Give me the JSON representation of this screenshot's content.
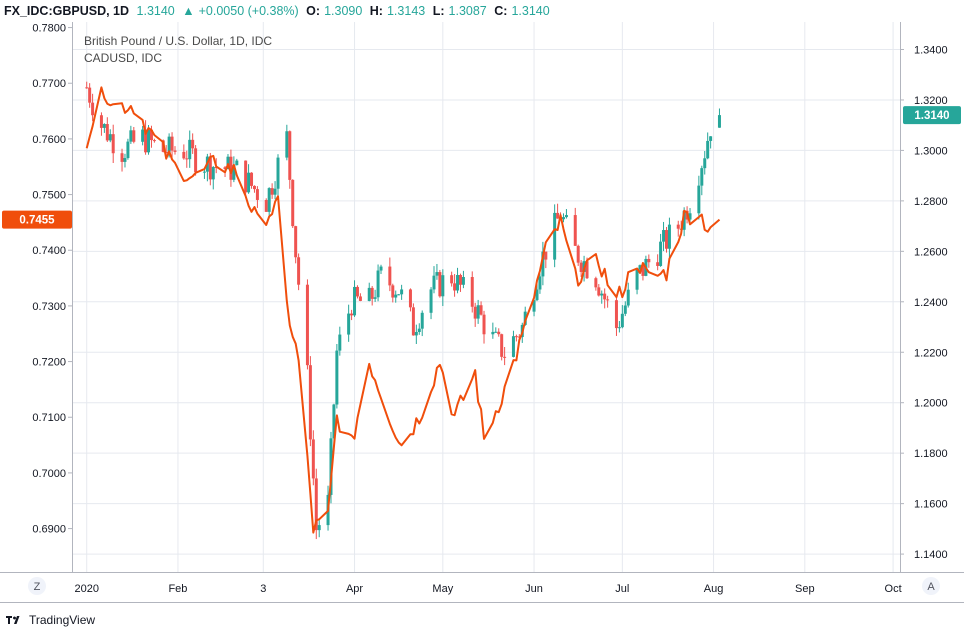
{
  "header": {
    "symbol": "FX_IDC:GBPUSD, 1D",
    "last": "1.3140",
    "change": "+0.0050 (+0.38%)",
    "o_label": "O:",
    "o": "1.3090",
    "h_label": "H:",
    "h": "1.3143",
    "l_label": "L:",
    "l": "1.3087",
    "c_label": "C:",
    "c": "1.3140"
  },
  "legend": {
    "main": "British Pound / U.S. Dollar, 1D, IDC",
    "overlay": "CADUSD, IDC"
  },
  "footer": {
    "brand": "TradingView",
    "scale_left_btn": "Z",
    "scale_right_btn": "A"
  },
  "colors": {
    "up": "#26a69a",
    "down": "#ef5350",
    "overlay": "#f04e0c",
    "grid": "#e6e9ef"
  },
  "chart_data": {
    "type": "candlestick",
    "right_axis": {
      "ticks": [
        "1.3400",
        "1.3200",
        "1.3000",
        "1.2800",
        "1.2600",
        "1.2400",
        "1.2200",
        "1.2000",
        "1.1800",
        "1.1600",
        "1.1400"
      ],
      "range": [
        1.1329,
        1.3509
      ],
      "last_label": "1.3140"
    },
    "left_axis": {
      "ticks": [
        "0.7800",
        "0.7700",
        "0.7600",
        "0.7500",
        "0.7400",
        "0.7300",
        "0.7200",
        "0.7100",
        "0.7000",
        "0.6900"
      ],
      "range": [
        0.6822,
        0.781
      ],
      "last_label": "0.7455"
    },
    "x_axis": {
      "labels": [
        "2020",
        "Feb",
        "3",
        "Apr",
        "May",
        "Jun",
        "Jul",
        "Aug",
        "Sep",
        "Oct"
      ]
    },
    "gbpusd_close_keypoints": [
      [
        "2020-01-01",
        1.325
      ],
      [
        "2020-01-06",
        1.31
      ],
      [
        "2020-01-13",
        1.3
      ],
      [
        "2020-01-20",
        1.305
      ],
      [
        "2020-01-27",
        1.3
      ],
      [
        "2020-02-03",
        1.3
      ],
      [
        "2020-02-10",
        1.295
      ],
      [
        "2020-02-17",
        1.293
      ],
      [
        "2020-02-21",
        1.292
      ],
      [
        "2020-03-02",
        1.28
      ],
      [
        "2020-03-09",
        1.305
      ],
      [
        "2020-03-12",
        1.26
      ],
      [
        "2020-03-16",
        1.21
      ],
      [
        "2020-03-19",
        1.15
      ],
      [
        "2020-03-23",
        1.16
      ],
      [
        "2020-03-26",
        1.22
      ],
      [
        "2020-03-31",
        1.24
      ],
      [
        "2020-04-06",
        1.24
      ],
      [
        "2020-04-10",
        1.25
      ],
      [
        "2020-04-16",
        1.245
      ],
      [
        "2020-04-21",
        1.23
      ],
      [
        "2020-04-27",
        1.245
      ],
      [
        "2020-05-04",
        1.25
      ],
      [
        "2020-05-11",
        1.24
      ],
      [
        "2020-05-18",
        1.225
      ],
      [
        "2020-05-22",
        1.22
      ],
      [
        "2020-05-28",
        1.23
      ],
      [
        "2020-06-03",
        1.255
      ],
      [
        "2020-06-10",
        1.275
      ],
      [
        "2020-06-15",
        1.26
      ],
      [
        "2020-06-22",
        1.25
      ],
      [
        "2020-06-29",
        1.23
      ],
      [
        "2020-07-06",
        1.25
      ],
      [
        "2020-07-13",
        1.26
      ],
      [
        "2020-07-20",
        1.27
      ],
      [
        "2020-07-24",
        1.28
      ],
      [
        "2020-07-29",
        1.3
      ],
      [
        "2020-07-31",
        1.31
      ],
      [
        "2020-08-03",
        1.314
      ]
    ],
    "cadusd_close_keypoints": [
      [
        "2020-01-01",
        0.76
      ],
      [
        "2020-01-07",
        0.769
      ],
      [
        "2020-01-10",
        0.766
      ],
      [
        "2020-01-17",
        0.766
      ],
      [
        "2020-01-24",
        0.76
      ],
      [
        "2020-01-31",
        0.755
      ],
      [
        "2020-02-07",
        0.753
      ],
      [
        "2020-02-14",
        0.756
      ],
      [
        "2020-02-21",
        0.754
      ],
      [
        "2020-02-28",
        0.745
      ],
      [
        "2020-03-06",
        0.748
      ],
      [
        "2020-03-09",
        0.73
      ],
      [
        "2020-03-13",
        0.72
      ],
      [
        "2020-03-18",
        0.69
      ],
      [
        "2020-03-23",
        0.692
      ],
      [
        "2020-03-26",
        0.71
      ],
      [
        "2020-03-31",
        0.705
      ],
      [
        "2020-04-06",
        0.72
      ],
      [
        "2020-04-13",
        0.71
      ],
      [
        "2020-04-17",
        0.705
      ],
      [
        "2020-04-23",
        0.71
      ],
      [
        "2020-04-30",
        0.72
      ],
      [
        "2020-05-05",
        0.71
      ],
      [
        "2020-05-12",
        0.718
      ],
      [
        "2020-05-15",
        0.706
      ],
      [
        "2020-05-22",
        0.715
      ],
      [
        "2020-05-29",
        0.726
      ],
      [
        "2020-06-05",
        0.74
      ],
      [
        "2020-06-10",
        0.745
      ],
      [
        "2020-06-15",
        0.735
      ],
      [
        "2020-06-23",
        0.738
      ],
      [
        "2020-06-29",
        0.731
      ],
      [
        "2020-07-06",
        0.738
      ],
      [
        "2020-07-10",
        0.735
      ],
      [
        "2020-07-16",
        0.736
      ],
      [
        "2020-07-22",
        0.746
      ],
      [
        "2020-07-27",
        0.747
      ],
      [
        "2020-07-30",
        0.744
      ],
      [
        "2020-08-03",
        0.7455
      ]
    ]
  }
}
